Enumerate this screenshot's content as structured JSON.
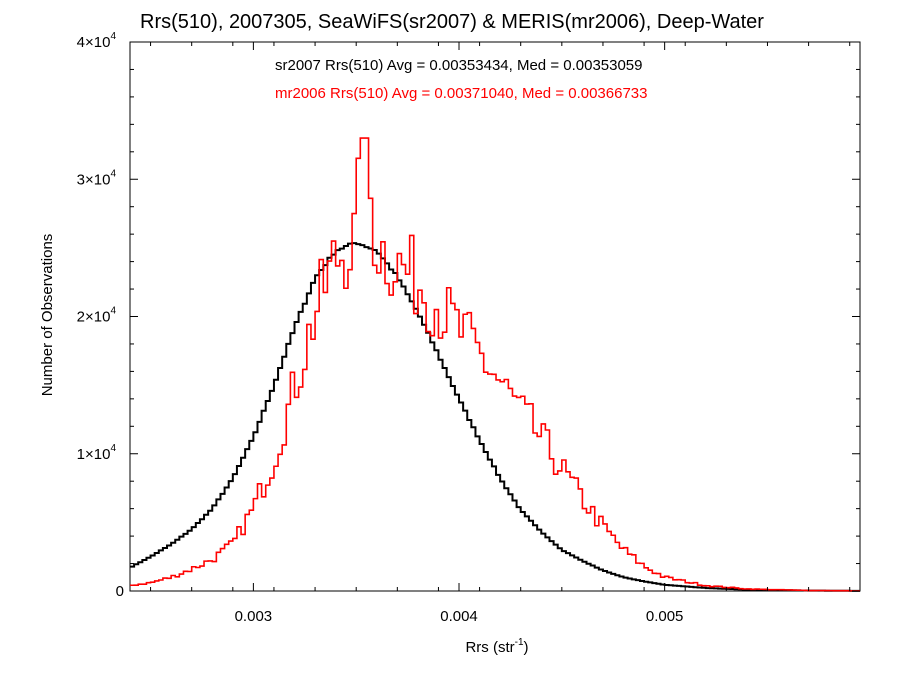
{
  "chart_data": {
    "type": "line",
    "title": "Rrs(510), 2007305, SeaWiFS(sr2007) & MERIS(mr2006), Deep-Water",
    "xlabel": {
      "text": "Rrs (str",
      "sup": "-1",
      "after": ")"
    },
    "ylabel": "Number of Observations",
    "xlim": [
      0.0024,
      0.00595
    ],
    "ylim": [
      0,
      40000
    ],
    "x_ticks": [
      {
        "value": 0.003,
        "label": "0.003"
      },
      {
        "value": 0.004,
        "label": "0.004"
      },
      {
        "value": 0.005,
        "label": "0.005"
      }
    ],
    "y_ticks": [
      {
        "value": 0,
        "mant": "0",
        "exp": ""
      },
      {
        "value": 10000,
        "mant": "1×10",
        "exp": "4"
      },
      {
        "value": 20000,
        "mant": "2×10",
        "exp": "4"
      },
      {
        "value": 30000,
        "mant": "3×10",
        "exp": "4"
      },
      {
        "value": 40000,
        "mant": "4×10",
        "exp": "4"
      }
    ],
    "annotations": [
      {
        "text": "sr2007 Rrs(510) Avg = 0.00353434, Med = 0.00353059",
        "color": "#000000"
      },
      {
        "text": "mr2006 Rrs(510) Avg = 0.00371040, Med = 0.00366733",
        "color": "#ff0000"
      }
    ],
    "series": [
      {
        "name": "sr2007",
        "color": "#000000",
        "style": "histogram-step",
        "points": [
          [
            0.0024,
            1700
          ],
          [
            0.0025,
            2500
          ],
          [
            0.0026,
            3400
          ],
          [
            0.0027,
            4500
          ],
          [
            0.0028,
            6000
          ],
          [
            0.0029,
            8200
          ],
          [
            0.003,
            11200
          ],
          [
            0.0031,
            15000
          ],
          [
            0.0032,
            19200
          ],
          [
            0.0033,
            22800
          ],
          [
            0.0034,
            24800
          ],
          [
            0.0035,
            25400
          ],
          [
            0.0036,
            24800
          ],
          [
            0.0037,
            22900
          ],
          [
            0.0038,
            20300
          ],
          [
            0.0039,
            17200
          ],
          [
            0.004,
            14000
          ],
          [
            0.0041,
            11000
          ],
          [
            0.0042,
            8200
          ],
          [
            0.0043,
            5900
          ],
          [
            0.0044,
            4300
          ],
          [
            0.0045,
            3000
          ],
          [
            0.0046,
            2200
          ],
          [
            0.0047,
            1500
          ],
          [
            0.0048,
            1000
          ],
          [
            0.0049,
            700
          ],
          [
            0.005,
            450
          ],
          [
            0.0052,
            220
          ],
          [
            0.0054,
            100
          ],
          [
            0.0057,
            30
          ],
          [
            0.00595,
            10
          ]
        ]
      },
      {
        "name": "mr2006",
        "color": "#ff0000",
        "style": "histogram-step",
        "points": [
          [
            0.0024,
            400
          ],
          [
            0.0025,
            600
          ],
          [
            0.0026,
            1000
          ],
          [
            0.0027,
            1600
          ],
          [
            0.0028,
            2300
          ],
          [
            0.0029,
            3400
          ],
          [
            0.003,
            6000
          ],
          [
            0.0031,
            9600
          ],
          [
            0.0032,
            14800
          ],
          [
            0.0033,
            20200
          ],
          [
            0.0034,
            24200
          ],
          [
            0.0035,
            25600
          ],
          [
            0.00353,
            33000
          ],
          [
            0.0036,
            25200
          ],
          [
            0.0037,
            23800
          ],
          [
            0.0038,
            22600
          ],
          [
            0.0039,
            20800
          ],
          [
            0.004,
            19000
          ],
          [
            0.0041,
            17200
          ],
          [
            0.0042,
            15200
          ],
          [
            0.0043,
            13100
          ],
          [
            0.0044,
            11100
          ],
          [
            0.0045,
            8900
          ],
          [
            0.0046,
            6700
          ],
          [
            0.0047,
            4700
          ],
          [
            0.0048,
            3000
          ],
          [
            0.0049,
            1800
          ],
          [
            0.005,
            1000
          ],
          [
            0.0052,
            400
          ],
          [
            0.0054,
            150
          ],
          [
            0.0057,
            40
          ],
          [
            0.00595,
            15
          ]
        ]
      }
    ]
  }
}
